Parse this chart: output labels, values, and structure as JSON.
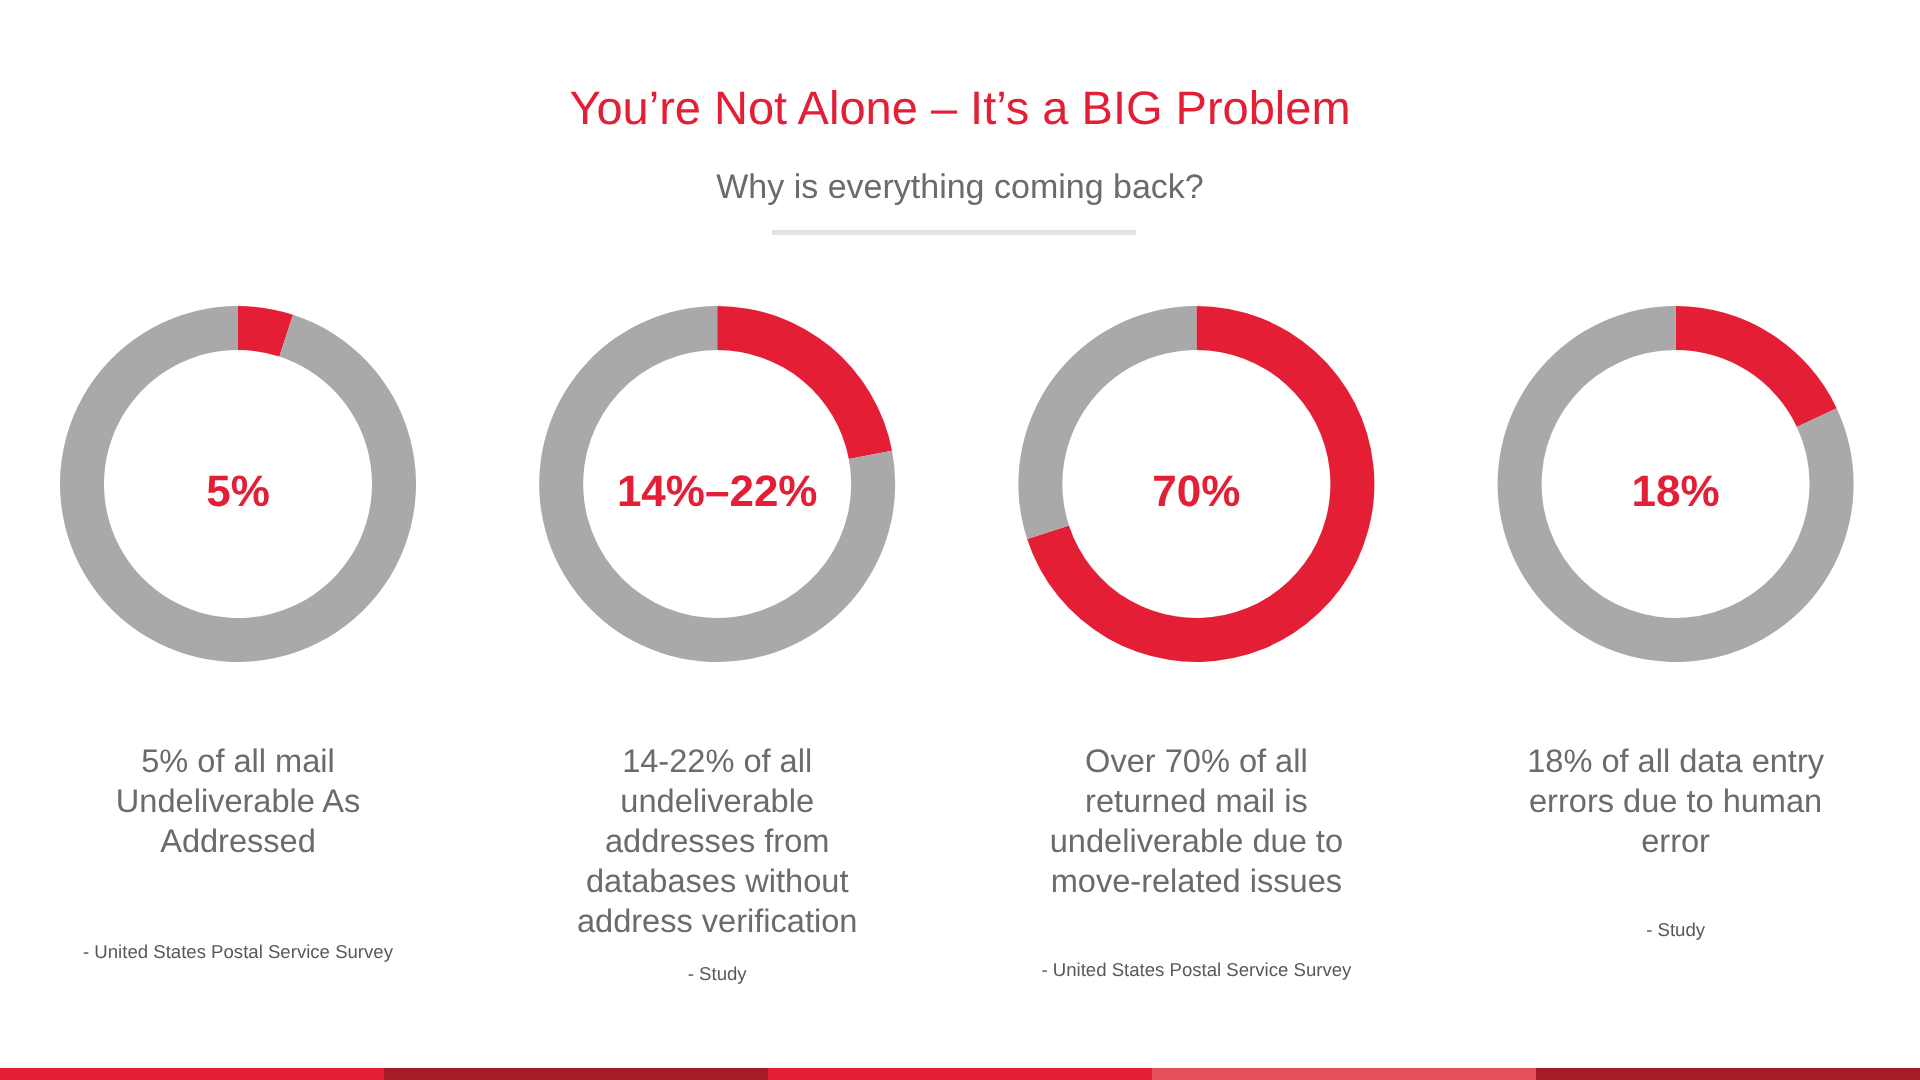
{
  "chart_data": [
    {
      "type": "other",
      "title": "You’re Not Alone – It’s a BIG Problem",
      "subtitle": "Why is everything coming back?"
    },
    {
      "type": "donut",
      "categories": [
        null,
        null
      ],
      "values": [
        5,
        95
      ],
      "colors": [
        "#e31e35",
        "#a9a9a9"
      ],
      "annotations": [
        "5%",
        "5% of all mail\nUndeliverable As\nAddressed",
        "- United States Postal Service Survey"
      ]
    },
    {
      "type": "donut",
      "categories": [
        null,
        null
      ],
      "values": [
        22,
        78
      ],
      "colors": [
        "#e31e35",
        "#a9a9a9"
      ],
      "annotations": [
        "14%–22%",
        "14-22% of all\nundeliverable\naddresses from\ndatabases without\naddress verification",
        "- Study"
      ]
    },
    {
      "type": "donut",
      "categories": [
        null,
        null
      ],
      "values": [
        70,
        30
      ],
      "colors": [
        "#e31e35",
        "#a9a9a9"
      ],
      "annotations": [
        "70%",
        "Over 70% of all\nreturned mail is\nundeliverable due to\nmove-related issues",
        "- United States Postal Service Survey"
      ]
    },
    {
      "type": "donut",
      "categories": [
        null,
        null
      ],
      "values": [
        18,
        82
      ],
      "colors": [
        "#e31e35",
        "#a9a9a9"
      ],
      "annotations": [
        "18%",
        "18% of all data entry\nerrors due to human\nerror",
        "- Study"
      ]
    }
  ]
}
